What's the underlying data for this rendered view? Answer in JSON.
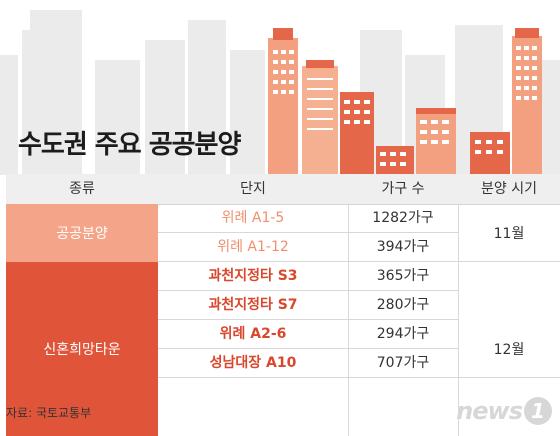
{
  "title": "수도권 주요 공공분양",
  "header": {
    "type": "종류",
    "complex": "단지",
    "households": "가구 수",
    "period": "분양 시기"
  },
  "groups": [
    {
      "category": "공공분양",
      "period": "11월",
      "color": "#f4a589",
      "text_color": "#f08f6d",
      "rows": [
        {
          "name": "위례 A1-5",
          "households": "1282가구"
        },
        {
          "name": "위례 A1-12",
          "households": "394가구"
        }
      ]
    },
    {
      "category": "신혼희망타운",
      "period": "12월",
      "color": "#e0553a",
      "text_color": "#d9472c",
      "rows": [
        {
          "name": "과천지정타 S3",
          "households": "365가구"
        },
        {
          "name": "과천지정타 S7",
          "households": "280가구"
        },
        {
          "name": "위례 A2-6",
          "households": "294가구"
        },
        {
          "name": "성남대장 A10",
          "households": "707가구"
        }
      ]
    }
  ],
  "source": "자료: 국토교통부",
  "logo": {
    "word": "news",
    "mark": "1"
  }
}
